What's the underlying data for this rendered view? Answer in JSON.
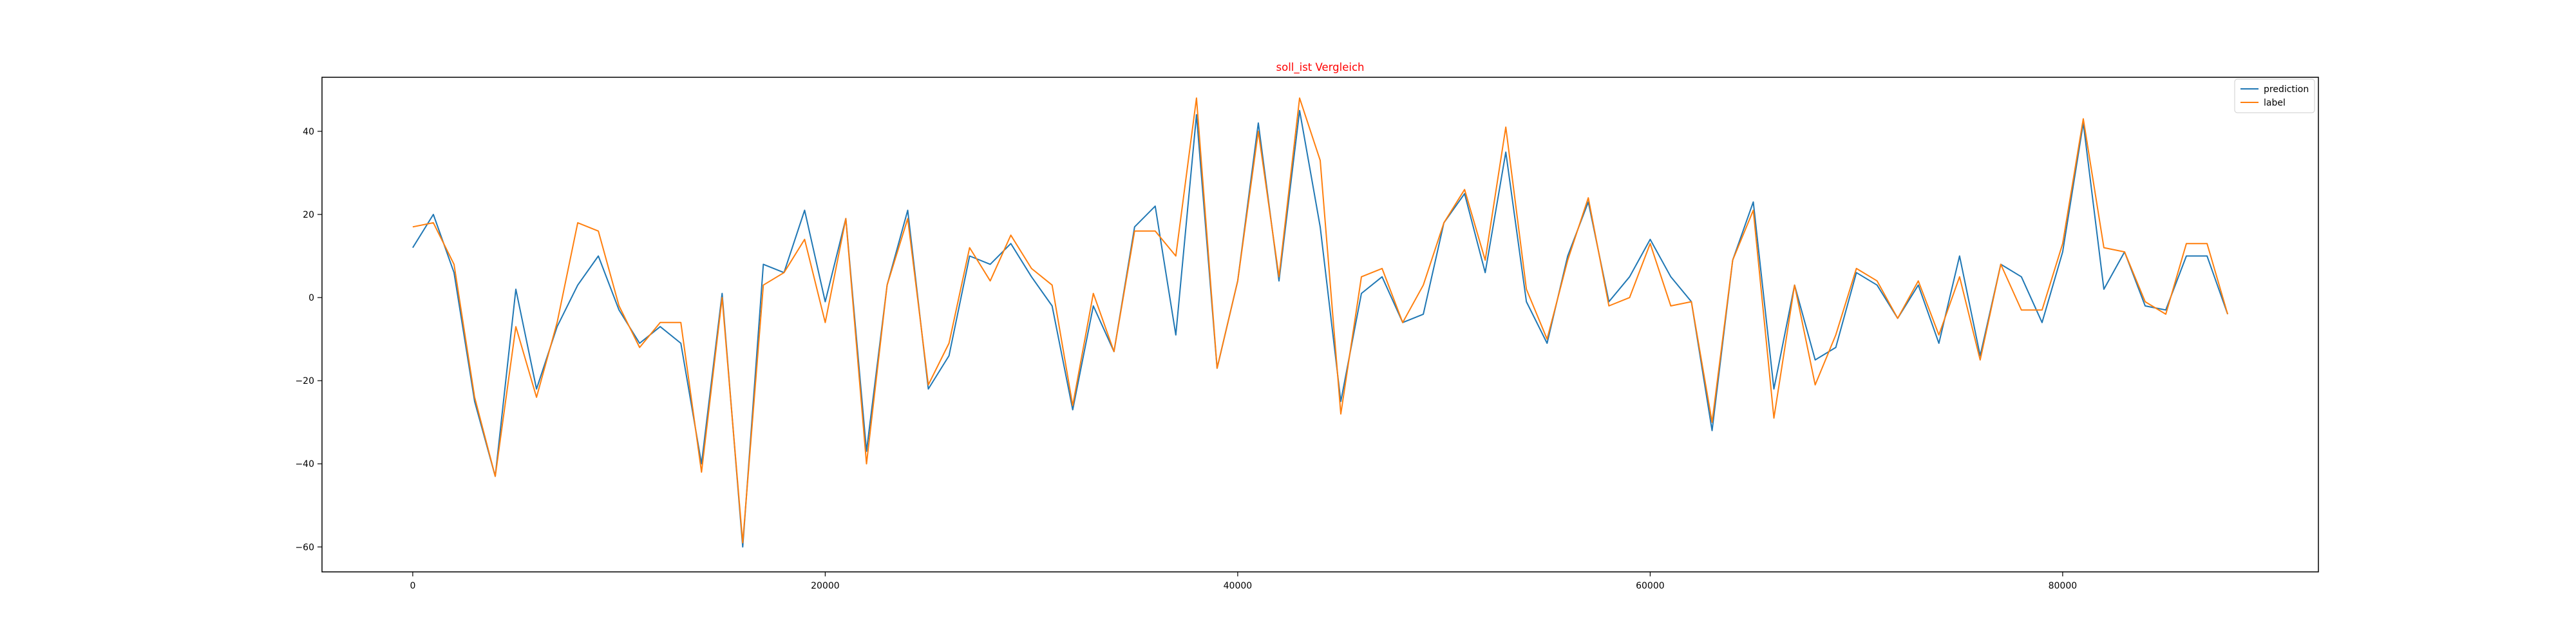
{
  "chart_data": {
    "type": "line",
    "title": "soll_ist Vergleich",
    "title_color": "#ff0000",
    "xlabel": "",
    "ylabel": "",
    "xlim": [
      -4400,
      92400
    ],
    "ylim": [
      -66,
      53
    ],
    "xticks": [
      0,
      20000,
      40000,
      60000,
      80000
    ],
    "xtick_labels": [
      "0",
      "20000",
      "40000",
      "60000",
      "80000"
    ],
    "yticks": [
      -60,
      -40,
      -20,
      0,
      20,
      40
    ],
    "ytick_labels": [
      "−60",
      "−40",
      "−20",
      "0",
      "20",
      "40"
    ],
    "grid": false,
    "legend_position": "top-right",
    "x": [
      0,
      1000,
      2000,
      3000,
      4000,
      5000,
      6000,
      7000,
      8000,
      9000,
      10000,
      11000,
      12000,
      13000,
      14000,
      15000,
      16000,
      17000,
      18000,
      19000,
      20000,
      21000,
      22000,
      23000,
      24000,
      25000,
      26000,
      27000,
      28000,
      29000,
      30000,
      31000,
      32000,
      33000,
      34000,
      35000,
      36000,
      37000,
      38000,
      39000,
      40000,
      41000,
      42000,
      43000,
      44000,
      45000,
      46000,
      47000,
      48000,
      49000,
      50000,
      51000,
      52000,
      53000,
      54000,
      55000,
      56000,
      57000,
      58000,
      59000,
      60000,
      61000,
      62000,
      63000,
      64000,
      65000,
      66000,
      67000,
      68000,
      69000,
      70000,
      71000,
      72000,
      73000,
      74000,
      75000,
      76000,
      77000,
      78000,
      79000,
      80000,
      81000,
      82000,
      83000,
      84000,
      85000,
      86000,
      87000,
      88000
    ],
    "series": [
      {
        "name": "prediction",
        "color": "#1f77b4",
        "values": [
          12,
          20,
          6,
          -25,
          -43,
          2,
          -22,
          -7,
          3,
          10,
          -3,
          -11,
          -7,
          -11,
          -40,
          1,
          -60,
          8,
          6,
          21,
          -1,
          19,
          -37,
          3,
          21,
          -22,
          -14,
          10,
          8,
          13,
          5,
          -2,
          -27,
          -2,
          -13,
          17,
          22,
          -9,
          44,
          -17,
          4,
          42,
          4,
          45,
          17,
          -25,
          1,
          5,
          -6,
          -4,
          18,
          25,
          6,
          35,
          -1,
          -11,
          10,
          23,
          -1,
          5,
          14,
          5,
          -1,
          -32,
          9,
          23,
          -22,
          3,
          -15,
          -12,
          6,
          3,
          -5,
          3,
          -11,
          10,
          -14,
          8,
          5,
          -6,
          11,
          42,
          2,
          11,
          -2,
          -3,
          10,
          10,
          -4
        ]
      },
      {
        "name": "label",
        "color": "#ff7f0e",
        "values": [
          17,
          18,
          8,
          -24,
          -43,
          -7,
          -24,
          -6,
          18,
          16,
          -2,
          -12,
          -6,
          -6,
          -42,
          0,
          -59,
          3,
          6,
          14,
          -6,
          19,
          -40,
          3,
          19,
          -21,
          -11,
          12,
          4,
          15,
          7,
          3,
          -26,
          1,
          -13,
          16,
          16,
          10,
          48,
          -17,
          4,
          40,
          5,
          48,
          33,
          -28,
          5,
          7,
          -6,
          3,
          18,
          26,
          9,
          41,
          2,
          -10,
          9,
          24,
          -2,
          0,
          13,
          -2,
          -1,
          -30,
          9,
          21,
          -29,
          3,
          -21,
          -9,
          7,
          4,
          -5,
          4,
          -9,
          5,
          -15,
          8,
          -3,
          -3,
          13,
          43,
          12,
          11,
          -1,
          -4,
          13,
          13,
          -4
        ]
      }
    ]
  }
}
